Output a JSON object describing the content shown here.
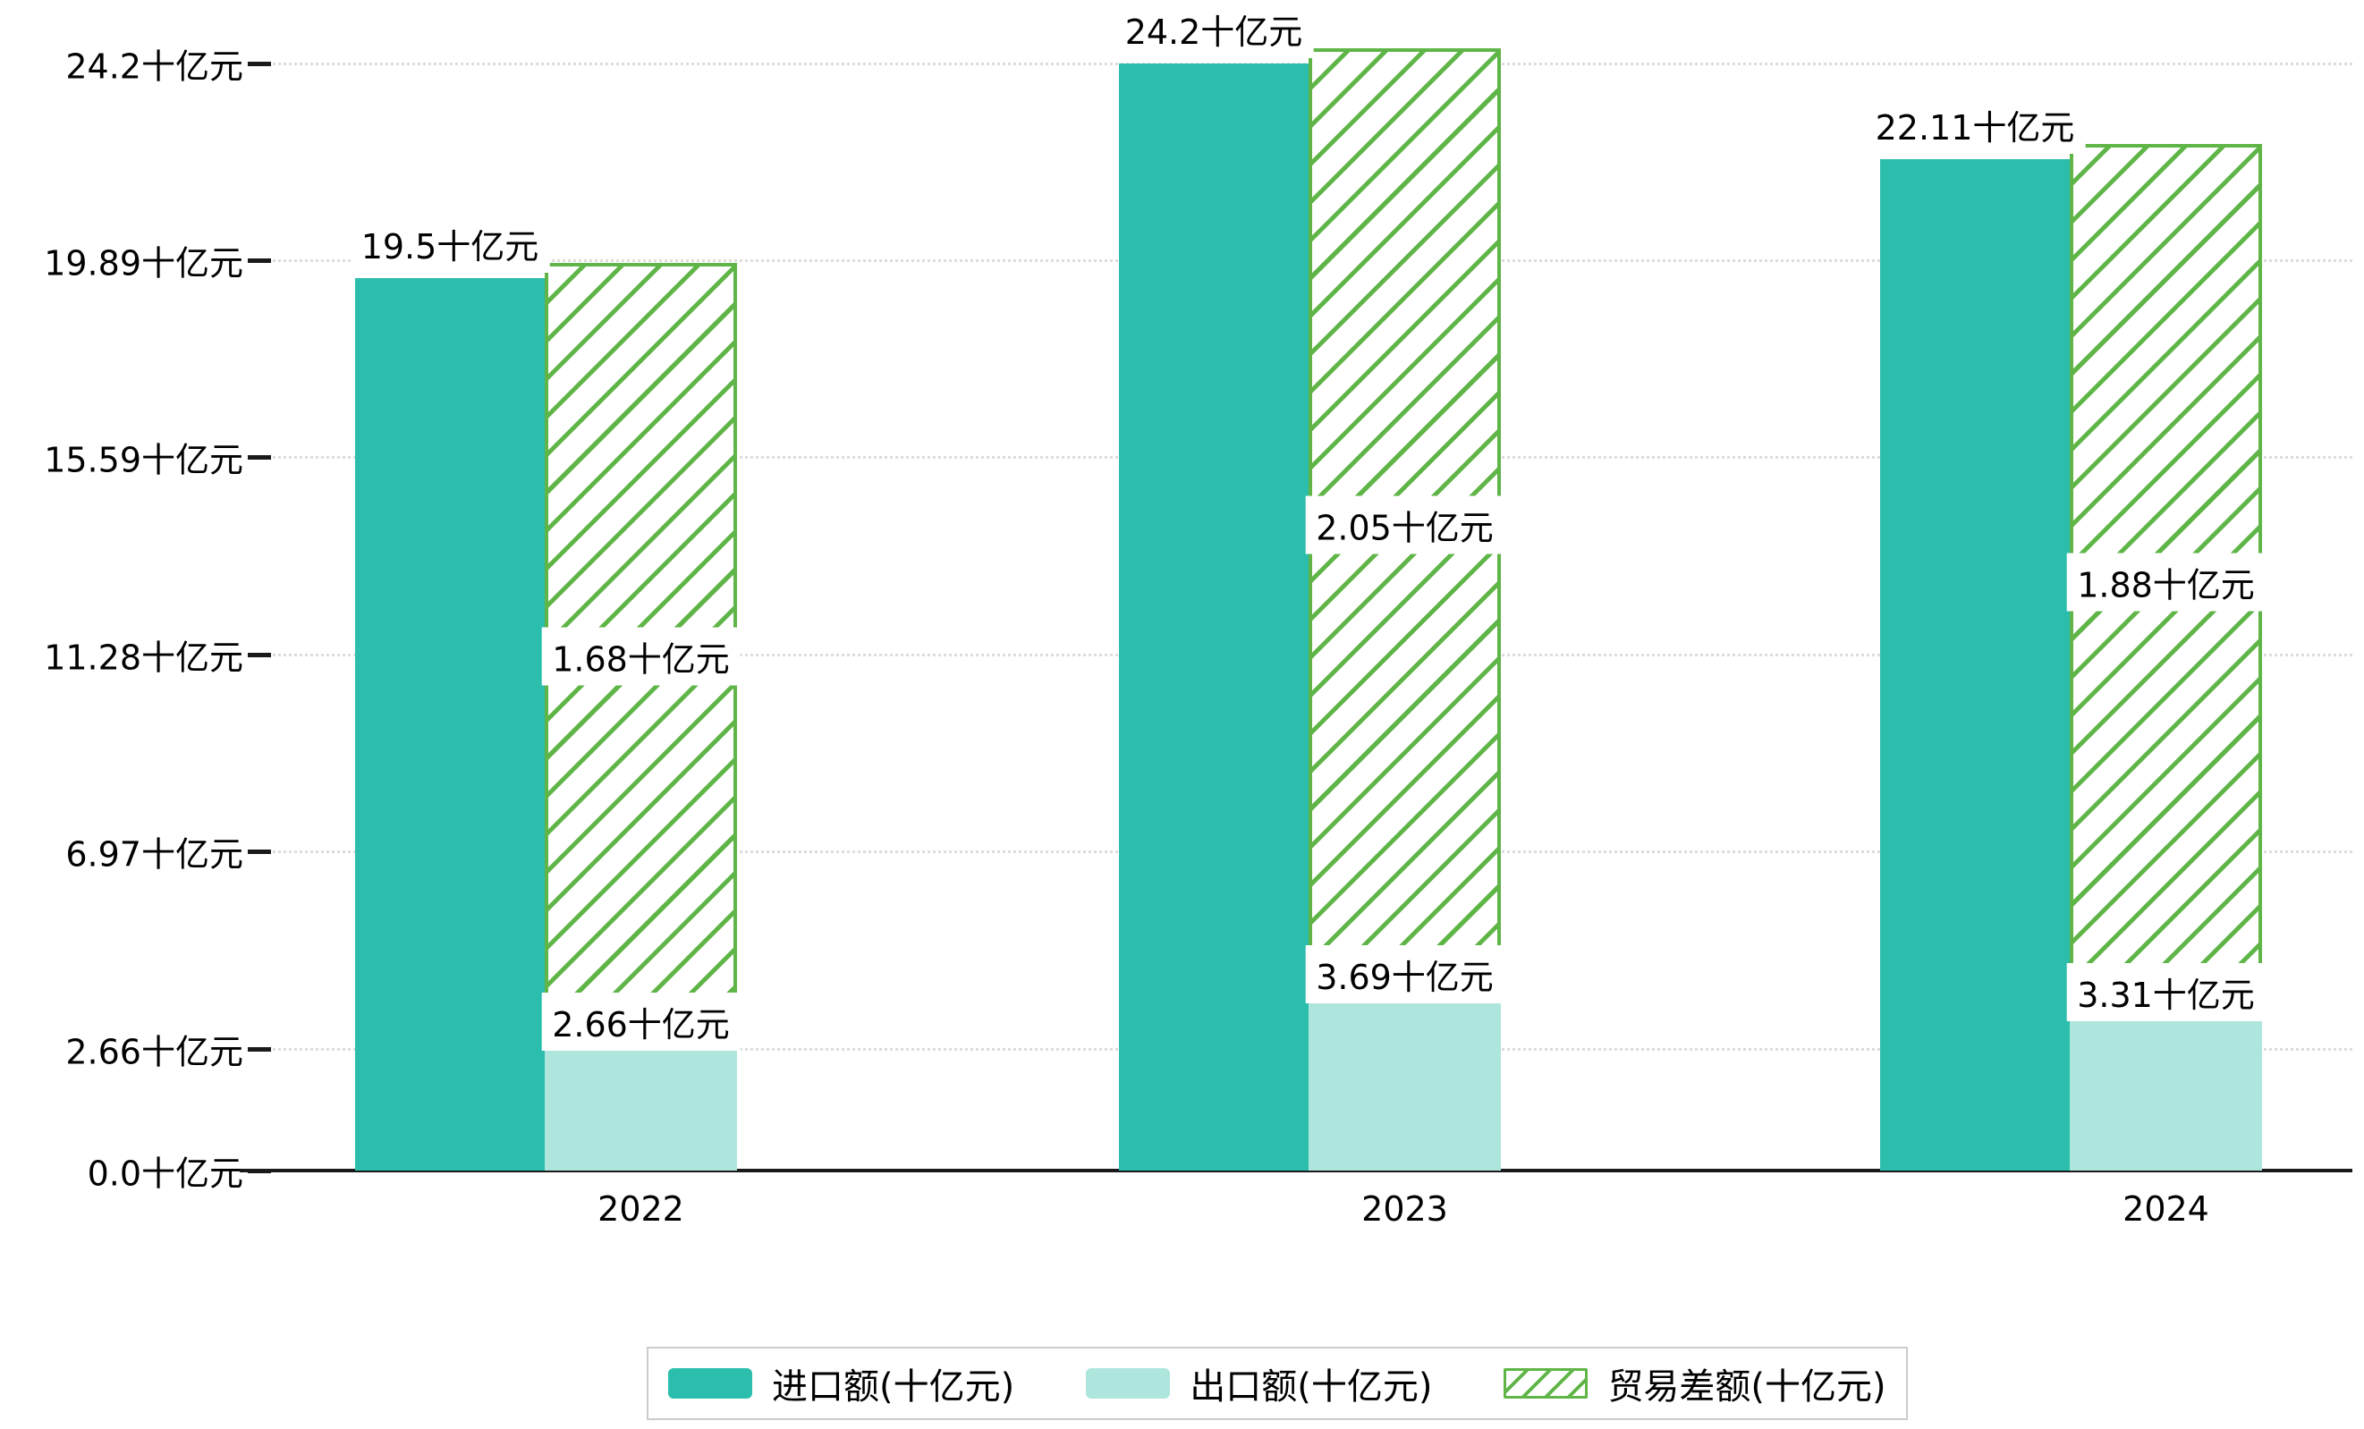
{
  "chart_data": {
    "type": "bar",
    "title": "",
    "unit": "十亿元",
    "categories": [
      "2022",
      "2023",
      "2024"
    ],
    "series": [
      {
        "name": "进口额(十亿元)",
        "values": [
          19.5,
          24.2,
          22.11
        ],
        "labels": [
          "19.5十亿元",
          "24.2十亿元",
          "22.11十亿元"
        ],
        "style": "solid-teal"
      },
      {
        "name": "出口额(十亿元)",
        "values": [
          2.66,
          3.69,
          3.31
        ],
        "labels": [
          "2.66十亿元",
          "3.69十亿元",
          "3.31十亿元"
        ],
        "style": "solid-light-teal"
      },
      {
        "name": "贸易差额(十亿元)",
        "values": [
          1.68,
          2.05,
          1.88
        ],
        "labels": [
          "1.68十亿元",
          "2.05十亿元",
          "1.88十亿元"
        ],
        "style": "green-hatched",
        "note": "floating hatched bar spanning from export bar top up to import bar top"
      }
    ],
    "y_axis": {
      "ticks": [
        {
          "value": 0.0,
          "label": "0.0十亿元"
        },
        {
          "value": 2.66,
          "label": "2.66十亿元"
        },
        {
          "value": 6.97,
          "label": "6.97十亿元"
        },
        {
          "value": 11.28,
          "label": "11.28十亿元"
        },
        {
          "value": 15.59,
          "label": "15.59十亿元"
        },
        {
          "value": 19.89,
          "label": "19.89十亿元"
        },
        {
          "value": 24.2,
          "label": "24.2十亿元"
        }
      ],
      "min": 0,
      "max": 24.2
    },
    "xlabel": "",
    "ylabel": "",
    "grid": true,
    "legend_position": "bottom",
    "legend": [
      "进口额(十亿元)",
      "出口额(十亿元)",
      "贸易差额(十亿元)"
    ]
  },
  "colors": {
    "import_teal": "#2BBEAC",
    "export_light_teal": "#AEE6DD",
    "trade_diff_green": "#5FB547",
    "grid": "#DCDCDC",
    "axis": "#1A1A1A",
    "legend_border": "#CCCCCC",
    "text": "#000000"
  }
}
